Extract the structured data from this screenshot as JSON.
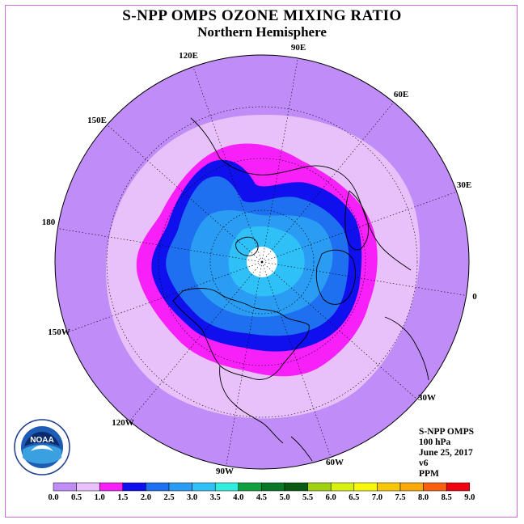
{
  "header": {
    "title": "S-NPP OMPS OZONE MIXING RATIO",
    "subtitle": "Northern Hemisphere"
  },
  "info": {
    "line1": "S-NPP OMPS",
    "line2": "100 hPa",
    "line3": "June 25, 2017",
    "line4": "v6",
    "line5": "PPM"
  },
  "longitude_labels": [
    "90E",
    "60E",
    "30E",
    "0",
    "30W",
    "60W",
    "90W",
    "120W",
    "150W",
    "180",
    "150E",
    "120E"
  ],
  "colorbar": {
    "ticks": [
      "0.0",
      "0.5",
      "1.0",
      "1.5",
      "2.0",
      "2.5",
      "3.0",
      "3.5",
      "4.0",
      "4.5",
      "5.0",
      "5.5",
      "6.0",
      "6.5",
      "7.0",
      "7.5",
      "8.0",
      "8.5",
      "9.0"
    ],
    "colors": [
      "#c08cf8",
      "#e8c0fa",
      "#f820f8",
      "#1010ee",
      "#1e70f0",
      "#2a9cf4",
      "#30c0f8",
      "#30eedd",
      "#10a040",
      "#087828",
      "#0a5a14",
      "#a0d010",
      "#d8f010",
      "#f8f80a",
      "#f8c808",
      "#f8a808",
      "#f86010",
      "#f00010",
      "#9a5a34"
    ]
  },
  "map": {
    "level_colors": {
      "outer": "#c08cf8",
      "pale": "#e8c0fa",
      "magenta": "#f820f8",
      "blue": "#1010ee",
      "mid_blue": "#1e70f0",
      "light_blue": "#2a9cf4",
      "cyan": "#30c0f8",
      "pole": "#ffffff"
    }
  },
  "logo": {
    "agency_text": "NOAA",
    "ring_text": "NATIONAL OCEANIC AND ATMOSPHERIC ADMINISTRATION · U.S. DEPARTMENT OF COMMERCE"
  }
}
